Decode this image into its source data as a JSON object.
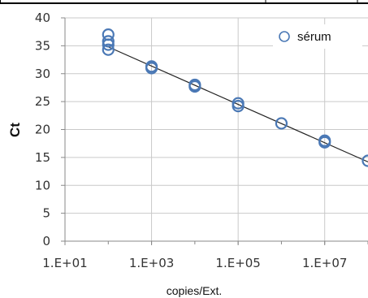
{
  "chart_data": {
    "type": "scatter",
    "title": "",
    "xlabel": "copies/Ext.",
    "ylabel": "Ct",
    "x_scale": "log10",
    "xlim": [
      10,
      100000000
    ],
    "ylim": [
      0,
      40
    ],
    "x_ticks": [
      {
        "value": 10,
        "label": "1.E+01"
      },
      {
        "value": 1000,
        "label": "1.E+03"
      },
      {
        "value": 100000,
        "label": "1.E+05"
      },
      {
        "value": 10000000,
        "label": "1.E+07"
      }
    ],
    "y_ticks": [
      0,
      5,
      10,
      15,
      20,
      25,
      30,
      35,
      40
    ],
    "grid": true,
    "legend_position": "top-right",
    "series": [
      {
        "name": "sérum",
        "color": "#4a78b5",
        "marker": "open-circle",
        "points": [
          {
            "x": 100,
            "y": 37.0
          },
          {
            "x": 100,
            "y": 35.8
          },
          {
            "x": 100,
            "y": 35.2
          },
          {
            "x": 100,
            "y": 34.3
          },
          {
            "x": 1000,
            "y": 31.3
          },
          {
            "x": 1000,
            "y": 31.0
          },
          {
            "x": 10000,
            "y": 28.0
          },
          {
            "x": 10000,
            "y": 27.7
          },
          {
            "x": 100000,
            "y": 24.7
          },
          {
            "x": 100000,
            "y": 24.2
          },
          {
            "x": 1000000,
            "y": 21.1
          },
          {
            "x": 10000000,
            "y": 18.0
          },
          {
            "x": 10000000,
            "y": 17.7
          },
          {
            "x": 100000000,
            "y": 14.4
          }
        ]
      }
    ],
    "trendline": {
      "color": "#222222",
      "points": [
        {
          "x": 100,
          "y": 34.8
        },
        {
          "x": 100000000,
          "y": 14.2
        }
      ]
    }
  }
}
